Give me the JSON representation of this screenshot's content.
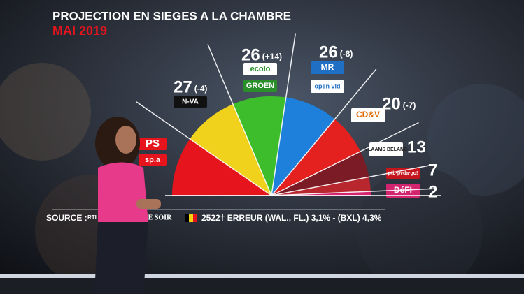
{
  "chart_data": {
    "type": "pie",
    "half": true,
    "title": "PROJECTION EN SIEGES A LA CHAMBRE",
    "subtitle": "MAI 2019",
    "categories": [
      [
        "PS",
        "sp.a"
      ],
      [
        "N-VA"
      ],
      [
        "ecolo",
        "GROEN"
      ],
      [
        "MR",
        "open vld"
      ],
      [
        "CD&V"
      ],
      [
        "VLAAMS BELANG"
      ],
      [
        "ptb·pvda·go!"
      ],
      [
        "DéFI"
      ]
    ],
    "values": [
      29,
      27,
      26,
      26,
      20,
      13,
      7,
      2
    ],
    "changes": [
      null,
      "(-4)",
      "(+14)",
      "(-8)",
      "(-7)",
      null,
      null,
      null
    ],
    "colors": [
      "#e5141d",
      "#f0d21c",
      "#3dbd2c",
      "#1f80dc",
      "#e4211f",
      "#7a1b26",
      "#b8262e",
      "#d3246f"
    ],
    "source": {
      "label": "SOURCE :",
      "items": [
        "RTL",
        "LE SOIR"
      ],
      "text": "2522† ERREUR (WAL., FL.) 3,1% - (BXL) 4,3%"
    }
  }
}
